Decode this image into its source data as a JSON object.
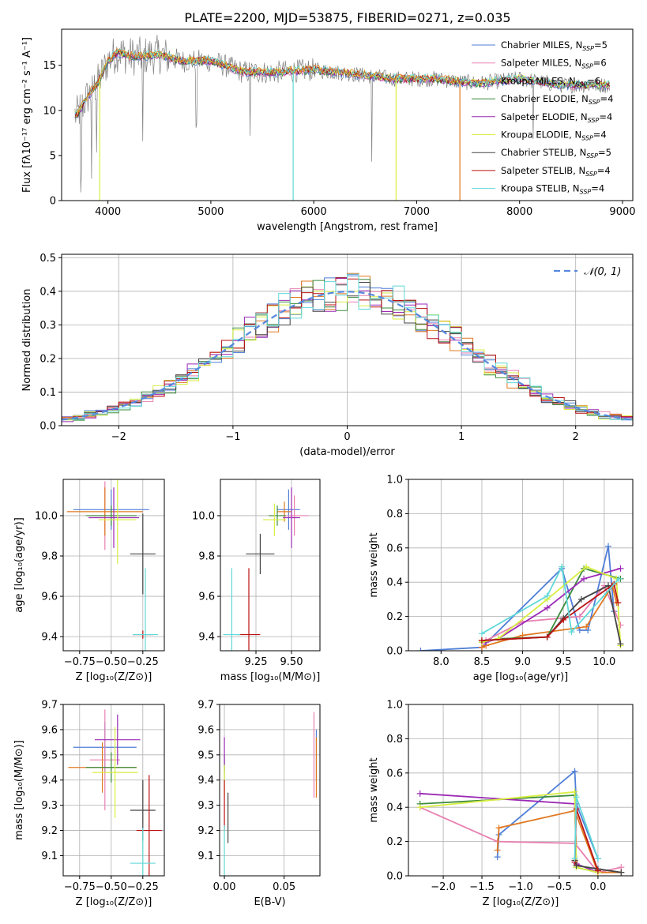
{
  "figure_title": "PLATE=2200, MJD=53875, FIBERID=0271, z=0.035",
  "colors": {
    "Chabrier MILES": "#4f7fd8",
    "Salpeter MILES": "#e880b0",
    "Kroupa MILES": "#e07820",
    "Chabrier ELODIE": "#3c8c3c",
    "Salpeter ELODIE": "#9b29b5",
    "Kroupa ELODIE": "#d8ee40",
    "Chabrier STELIB": "#444444",
    "Salpeter STELIB": "#bb1111",
    "Kroupa STELIB": "#60d8d8",
    "normal_fit": "#5588dd",
    "grid": "#b0b0b0",
    "spectrum_data": "#808080"
  },
  "legend_entries": [
    {
      "label": "Chabrier MILES, N",
      "sub": "SSP",
      "tail": "=5",
      "model": "Chabrier MILES"
    },
    {
      "label": "Salpeter MILES, N",
      "sub": "SSP",
      "tail": "=6",
      "model": "Salpeter MILES"
    },
    {
      "label": "Kroupa MILES, N",
      "sub": "SSP",
      "tail": "=6",
      "model": "Kroupa MILES"
    },
    {
      "label": "Chabrier ELODIE, N",
      "sub": "SSP",
      "tail": "=4",
      "model": "Chabrier ELODIE"
    },
    {
      "label": "Salpeter ELODIE, N",
      "sub": "SSP",
      "tail": "=4",
      "model": "Salpeter ELODIE"
    },
    {
      "label": "Kroupa ELODIE, N",
      "sub": "SSP",
      "tail": "=4",
      "model": "Kroupa ELODIE"
    },
    {
      "label": "Chabrier STELIB, N",
      "sub": "SSP",
      "tail": "=5",
      "model": "Chabrier STELIB"
    },
    {
      "label": "Salpeter STELIB, N",
      "sub": "SSP",
      "tail": "=4",
      "model": "Salpeter STELIB"
    },
    {
      "label": "Kroupa STELIB, N",
      "sub": "SSP",
      "tail": "=4",
      "model": "Kroupa STELIB"
    }
  ],
  "chart_data": [
    {
      "id": "spectrum",
      "type": "line",
      "xlabel": "wavelength [Angstrom, rest frame]",
      "ylabel": "Flux [fλ10⁻¹⁷ erg cm⁻² s⁻¹ A⁻¹]",
      "xlim": [
        3550,
        9100
      ],
      "ylim": [
        0,
        19
      ],
      "xticks": [
        4000,
        5000,
        6000,
        7000,
        8000,
        9000
      ],
      "yticks": [
        0,
        5,
        10,
        15
      ],
      "grid": false,
      "legend": "top-right",
      "model_curve_x": [
        3700,
        3800,
        3900,
        4000,
        4100,
        4200,
        4300,
        4500,
        4700,
        5000,
        5300,
        5600,
        6000,
        6400,
        6800,
        7200,
        7400,
        7600,
        8000,
        8400,
        8800
      ],
      "model_curve_y": [
        9.5,
        11.5,
        13.0,
        15.5,
        16.5,
        16.0,
        16.0,
        16.2,
        15.5,
        15.5,
        14.3,
        14.2,
        14.5,
        14.0,
        13.5,
        13.5,
        13.2,
        13.0,
        13.5,
        12.8,
        12.8
      ],
      "model_drops": [
        {
          "model": "Kroupa ELODIE",
          "x": 3920
        },
        {
          "model": "Kroupa STELIB",
          "x": 5800
        },
        {
          "model": "Kroupa ELODIE",
          "x": 6800
        },
        {
          "model": "Kroupa MILES",
          "x": 7420
        }
      ],
      "data_dips": [
        3740,
        3840,
        3890,
        4340,
        4860,
        5380,
        6565,
        8130
      ]
    },
    {
      "id": "residuals",
      "type": "histogram",
      "xlabel": "(data-model)/error",
      "ylabel": "Normed distribution",
      "xlim": [
        -2.5,
        2.5
      ],
      "ylim": [
        0,
        0.51
      ],
      "xticks": [
        -2,
        -1,
        0,
        1,
        2
      ],
      "yticks": [
        0.0,
        0.1,
        0.2,
        0.3,
        0.4,
        0.5
      ],
      "grid": true,
      "legend": "top-right",
      "fit_label": "𝒩(0, 1)",
      "bin_width": 0.1,
      "envelope": "gaussian"
    },
    {
      "id": "age-vs-Z",
      "type": "errorbar",
      "xlabel": "Z [log₁₀(Z/Z⊙)]",
      "ylabel": "age  [log₁₀(age/yr)]",
      "xlim": [
        -0.88,
        -0.08
      ],
      "ylim": [
        9.33,
        10.18
      ],
      "xticks": [
        -0.75,
        -0.5,
        -0.25
      ],
      "yticks": [
        9.4,
        9.6,
        9.8,
        10.0
      ],
      "grid": true,
      "points": [
        {
          "model": "Chabrier MILES",
          "x": -0.5,
          "y": 10.03,
          "xerr": 0.3,
          "yerr": 0.1
        },
        {
          "model": "Salpeter MILES",
          "x": -0.55,
          "y": 10.0,
          "xerr": 0.12,
          "yerr": 0.17
        },
        {
          "model": "Kroupa MILES",
          "x": -0.55,
          "y": 10.02,
          "xerr": 0.3,
          "yerr": 0.12
        },
        {
          "model": "Chabrier ELODIE",
          "x": -0.5,
          "y": 10.0,
          "xerr": 0.2,
          "yerr": 0.05
        },
        {
          "model": "Salpeter ELODIE",
          "x": -0.48,
          "y": 9.99,
          "xerr": 0.2,
          "yerr": 0.15
        },
        {
          "model": "Kroupa ELODIE",
          "x": -0.45,
          "y": 9.98,
          "xerr": 0.15,
          "yerr": 0.22
        },
        {
          "model": "Chabrier STELIB",
          "x": -0.25,
          "y": 9.81,
          "xerr": 0.1,
          "yerr": 0.2
        },
        {
          "model": "Salpeter STELIB",
          "x": -0.25,
          "y": 9.41,
          "xerr": 0.08,
          "yerr": 0.02
        },
        {
          "model": "Kroupa STELIB",
          "x": -0.23,
          "y": 9.41,
          "xerr": 0.1,
          "yerr": 0.33
        }
      ]
    },
    {
      "id": "age-vs-mass",
      "type": "errorbar",
      "xlabel": "mass [log₁₀(M/M⊙)]",
      "ylabel": "",
      "xlim": [
        9.0,
        9.7
      ],
      "ylim": [
        9.33,
        10.18
      ],
      "xticks": [
        9.25,
        9.5
      ],
      "yticks": [
        9.4,
        9.6,
        9.8,
        10.0
      ],
      "grid": true,
      "points": [
        {
          "model": "Chabrier MILES",
          "x": 9.48,
          "y": 10.03,
          "xerr": 0.08,
          "yerr": 0.1
        },
        {
          "model": "Salpeter MILES",
          "x": 9.52,
          "y": 10.0,
          "xerr": 0.1,
          "yerr": 0.1
        },
        {
          "model": "Kroupa MILES",
          "x": 9.45,
          "y": 10.02,
          "xerr": 0.05,
          "yerr": 0.05
        },
        {
          "model": "Chabrier ELODIE",
          "x": 9.4,
          "y": 10.0,
          "xerr": 0.06,
          "yerr": 0.05
        },
        {
          "model": "Salpeter ELODIE",
          "x": 9.5,
          "y": 9.99,
          "xerr": 0.06,
          "yerr": 0.15
        },
        {
          "model": "Kroupa ELODIE",
          "x": 9.38,
          "y": 9.98,
          "xerr": 0.08,
          "yerr": 0.08
        },
        {
          "model": "Chabrier STELIB",
          "x": 9.28,
          "y": 9.81,
          "xerr": 0.1,
          "yerr": 0.1
        },
        {
          "model": "Salpeter STELIB",
          "x": 9.2,
          "y": 9.41,
          "xerr": 0.08,
          "yerr": 0.33
        },
        {
          "model": "Kroupa STELIB",
          "x": 9.08,
          "y": 9.41,
          "xerr": 0.06,
          "yerr": 0.33
        }
      ]
    },
    {
      "id": "mass-weight-vs-age",
      "type": "line",
      "xlabel": "age  [log₁₀(age/yr)]",
      "ylabel": "mass weight",
      "xlim": [
        7.6,
        10.35
      ],
      "ylim": [
        0,
        1.0
      ],
      "xticks": [
        8.0,
        8.5,
        9.0,
        9.5,
        10.0
      ],
      "yticks": [
        0.0,
        0.2,
        0.4,
        0.6,
        0.8,
        1.0
      ],
      "grid": true,
      "series": [
        {
          "model": "Chabrier MILES",
          "x": [
            7.75,
            8.5,
            9.48,
            9.7,
            9.8,
            10.05,
            10.12
          ],
          "y": [
            0.0,
            0.02,
            0.48,
            0.12,
            0.12,
            0.61,
            0.23
          ]
        },
        {
          "model": "Salpeter MILES",
          "x": [
            8.5,
            8.55,
            9.0,
            9.7,
            10.0,
            10.2
          ],
          "y": [
            0.02,
            0.06,
            0.17,
            0.2,
            0.38,
            0.15
          ]
        },
        {
          "model": "Kroupa MILES",
          "x": [
            8.5,
            8.55,
            9.0,
            9.78,
            10.1,
            10.15
          ],
          "y": [
            0.02,
            0.03,
            0.09,
            0.14,
            0.38,
            0.28
          ]
        },
        {
          "model": "Chabrier ELODIE",
          "x": [
            8.5,
            8.7,
            9.3,
            9.75,
            10.2
          ],
          "y": [
            0.05,
            0.07,
            0.08,
            0.48,
            0.42
          ]
        },
        {
          "model": "Salpeter ELODIE",
          "x": [
            8.55,
            8.7,
            9.3,
            9.75,
            10.2
          ],
          "y": [
            0.05,
            0.07,
            0.25,
            0.42,
            0.48
          ]
        },
        {
          "model": "Kroupa ELODIE",
          "x": [
            8.5,
            8.7,
            9.3,
            9.78,
            10.15,
            10.2
          ],
          "y": [
            0.05,
            0.07,
            0.3,
            0.49,
            0.42,
            0.03
          ]
        },
        {
          "model": "Chabrier STELIB",
          "x": [
            8.5,
            9.3,
            9.5,
            9.72,
            10.05,
            10.2
          ],
          "y": [
            0.06,
            0.08,
            0.19,
            0.3,
            0.38,
            0.04
          ]
        },
        {
          "model": "Salpeter STELIB",
          "x": [
            8.5,
            9.3,
            9.5,
            10.12,
            10.17
          ],
          "y": [
            0.06,
            0.08,
            0.18,
            0.39,
            0.28
          ]
        },
        {
          "model": "Kroupa STELIB",
          "x": [
            8.5,
            9.3,
            9.48,
            9.6,
            10.18
          ],
          "y": [
            0.1,
            0.32,
            0.49,
            0.11,
            0.42
          ]
        }
      ]
    },
    {
      "id": "mass-vs-Z",
      "type": "errorbar",
      "xlabel": "Z [log₁₀(Z/Z⊙)]",
      "ylabel": "mass [log₁₀(M/M⊙)]",
      "xlim": [
        -0.88,
        -0.08
      ],
      "ylim": [
        9.02,
        9.7
      ],
      "xticks": [
        -0.75,
        -0.5,
        -0.25
      ],
      "yticks": [
        9.1,
        9.2,
        9.3,
        9.4,
        9.5,
        9.6,
        9.7
      ],
      "grid": true,
      "points": [
        {
          "model": "Chabrier MILES",
          "x": -0.55,
          "y": 9.53,
          "xerr": 0.25,
          "yerr": 0.1
        },
        {
          "model": "Salpeter MILES",
          "x": -0.55,
          "y": 9.48,
          "xerr": 0.12,
          "yerr": 0.2
        },
        {
          "model": "Kroupa MILES",
          "x": -0.57,
          "y": 9.45,
          "xerr": 0.27,
          "yerr": 0.1
        },
        {
          "model": "Chabrier ELODIE",
          "x": -0.5,
          "y": 9.45,
          "xerr": 0.2,
          "yerr": 0.06
        },
        {
          "model": "Salpeter ELODIE",
          "x": -0.45,
          "y": 9.56,
          "xerr": 0.18,
          "yerr": 0.1
        },
        {
          "model": "Kroupa ELODIE",
          "x": -0.47,
          "y": 9.43,
          "xerr": 0.18,
          "yerr": 0.18
        },
        {
          "model": "Chabrier STELIB",
          "x": -0.25,
          "y": 9.28,
          "xerr": 0.1,
          "yerr": 0.12
        },
        {
          "model": "Salpeter STELIB",
          "x": -0.2,
          "y": 9.2,
          "xerr": 0.1,
          "yerr": 0.22
        },
        {
          "model": "Kroupa STELIB",
          "x": -0.25,
          "y": 9.07,
          "xerr": 0.1,
          "yerr": 0.14
        }
      ]
    },
    {
      "id": "mass-vs-EBV",
      "type": "errorbar",
      "xlabel": "E(B-V)",
      "ylabel": "",
      "xlim": [
        -0.004,
        0.08
      ],
      "ylim": [
        9.02,
        9.7
      ],
      "xticks": [
        0.0,
        0.05
      ],
      "yticks": [
        9.1,
        9.2,
        9.3,
        9.4,
        9.5,
        9.6,
        9.7
      ],
      "grid": true,
      "points": [
        {
          "model": "Chabrier MILES",
          "x": 0.077,
          "y": 9.5,
          "xerr": 0,
          "yerr": 0.1
        },
        {
          "model": "Salpeter MILES",
          "x": 0.075,
          "y": 9.5,
          "xerr": 0,
          "yerr": 0.17
        },
        {
          "model": "Kroupa MILES",
          "x": 0.077,
          "y": 9.45,
          "xerr": 0,
          "yerr": 0.12
        },
        {
          "model": "Chabrier ELODIE",
          "x": 0.0,
          "y": 9.45,
          "xerr": 0,
          "yerr": 0.05
        },
        {
          "model": "Salpeter ELODIE",
          "x": 0.0,
          "y": 9.5,
          "xerr": 0,
          "yerr": 0.07
        },
        {
          "model": "Kroupa ELODIE",
          "x": 0.0,
          "y": 9.4,
          "xerr": 0,
          "yerr": 0.06
        },
        {
          "model": "Chabrier STELIB",
          "x": 0.003,
          "y": 9.25,
          "xerr": 0,
          "yerr": 0.1
        },
        {
          "model": "Salpeter STELIB",
          "x": 0.0,
          "y": 9.3,
          "xerr": 0,
          "yerr": 0.1
        },
        {
          "model": "Kroupa STELIB",
          "x": 0.0,
          "y": 9.1,
          "xerr": 0,
          "yerr": 0.12
        }
      ]
    },
    {
      "id": "mass-weight-vs-Z",
      "type": "line",
      "xlabel": "Z [log₁₀(Z/Z⊙)]",
      "ylabel": "mass weight",
      "xlim": [
        -2.45,
        0.45
      ],
      "ylim": [
        0,
        1.0
      ],
      "xticks": [
        -2.0,
        -1.5,
        -1.0,
        -0.5,
        0.0
      ],
      "yticks": [
        0.0,
        0.2,
        0.4,
        0.6,
        0.8,
        1.0
      ],
      "grid": true,
      "series": [
        {
          "model": "Chabrier MILES",
          "x": [
            -1.3,
            -1.28,
            -0.3,
            -0.28,
            0.0
          ],
          "y": [
            0.11,
            0.24,
            0.61,
            0.42,
            0.1
          ]
        },
        {
          "model": "Salpeter MILES",
          "x": [
            -2.3,
            -1.3,
            -0.3,
            0.0,
            0.3
          ],
          "y": [
            0.4,
            0.2,
            0.19,
            0.02,
            0.05
          ]
        },
        {
          "model": "Kroupa MILES",
          "x": [
            -1.3,
            -1.28,
            -0.3,
            0.0,
            0.3
          ],
          "y": [
            0.15,
            0.28,
            0.38,
            0.02,
            0.02
          ]
        },
        {
          "model": "Chabrier ELODIE",
          "x": [
            -2.3,
            -0.3,
            -0.28,
            0.0
          ],
          "y": [
            0.42,
            0.47,
            0.05,
            0.02
          ]
        },
        {
          "model": "Salpeter ELODIE",
          "x": [
            -2.3,
            -0.3,
            -0.28,
            0.0
          ],
          "y": [
            0.48,
            0.42,
            0.07,
            0.02
          ]
        },
        {
          "model": "Kroupa ELODIE",
          "x": [
            -2.3,
            -0.3,
            -0.28,
            0.0
          ],
          "y": [
            0.4,
            0.49,
            0.05,
            0.02
          ]
        },
        {
          "model": "Chabrier STELIB",
          "x": [
            -0.3,
            -0.28,
            0.0,
            0.3
          ],
          "y": [
            0.09,
            0.06,
            0.04,
            0.02
          ]
        },
        {
          "model": "Salpeter STELIB",
          "x": [
            -0.3,
            -0.28,
            0.0
          ],
          "y": [
            0.08,
            0.39,
            0.03
          ]
        },
        {
          "model": "Kroupa STELIB",
          "x": [
            -0.3,
            -0.28,
            0.0
          ],
          "y": [
            0.1,
            0.46,
            0.1
          ]
        }
      ]
    }
  ]
}
